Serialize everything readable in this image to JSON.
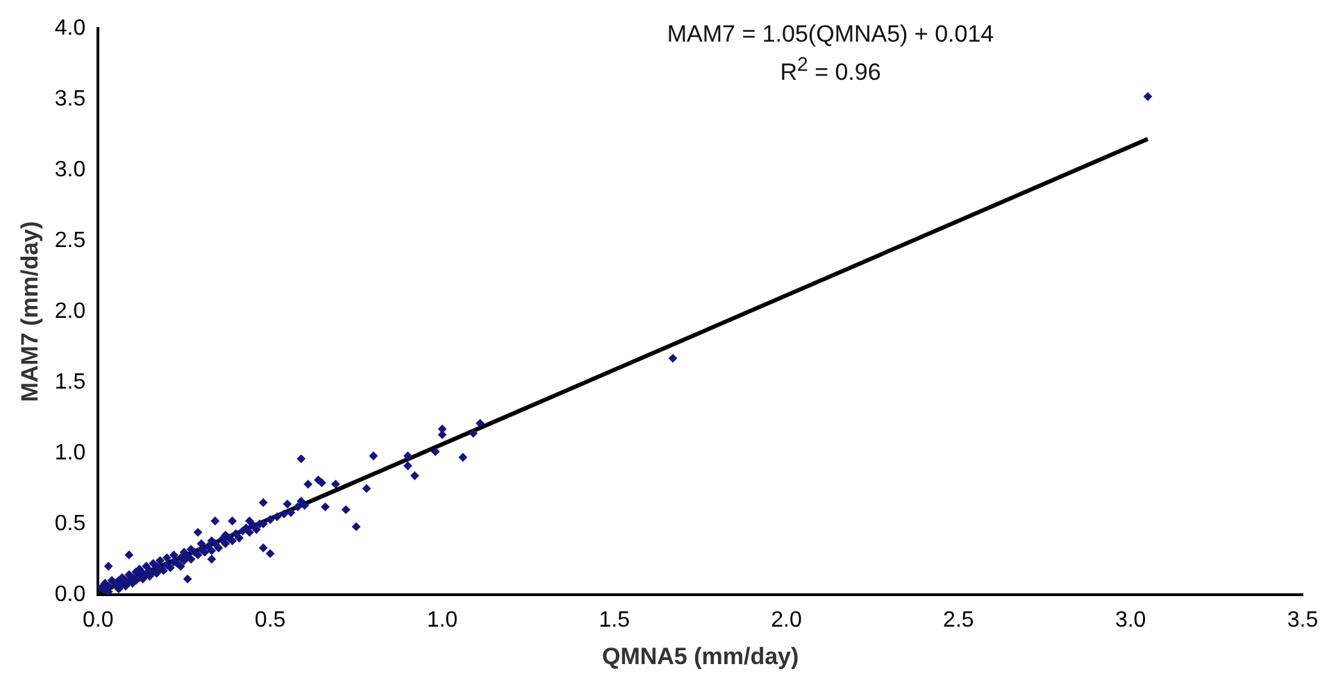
{
  "chart_data": {
    "type": "scatter",
    "xlabel": "QMNA5 (mm/day)",
    "ylabel": "MAM7 (mm/day)",
    "annotations": [
      "MAM7 = 1.05(QMNA5) + 0.014",
      "R$^{2}$ = 0.96"
    ],
    "xlim": [
      0,
      3.5
    ],
    "xticks": [
      {
        "value": 0,
        "label": "0.0"
      },
      {
        "value": 0.5,
        "label": "0.5"
      },
      {
        "value": 1,
        "label": "1.0"
      },
      {
        "value": 1.5,
        "label": "1.5"
      },
      {
        "value": 2,
        "label": "2.0"
      },
      {
        "value": 2.5,
        "label": "2.5"
      },
      {
        "value": 3,
        "label": "3.0"
      },
      {
        "value": 3.5,
        "label": "3.5"
      }
    ],
    "ylim": [
      0,
      4
    ],
    "yticks": [
      {
        "value": 0,
        "label": "0.0"
      },
      {
        "value": 0.5,
        "label": "0.5"
      },
      {
        "value": 1,
        "label": "1.0"
      },
      {
        "value": 1.5,
        "label": "1.5"
      },
      {
        "value": 2,
        "label": "2.0"
      },
      {
        "value": 2.5,
        "label": "2.5"
      },
      {
        "value": 3,
        "label": "3.0"
      },
      {
        "value": 3.5,
        "label": "3.5"
      },
      {
        "value": 4,
        "label": "4.0"
      }
    ],
    "grid": false,
    "legend": false,
    "marker": "diamond",
    "series": [
      {
        "color": "#14147f",
        "x": [
          0.01,
          0.02,
          0.02,
          0.03,
          0.03,
          0.04,
          0.05,
          0.06,
          0.06,
          0.07,
          0.07,
          0.08,
          0.08,
          0.09,
          0.09,
          0.1,
          0.1,
          0.11,
          0.11,
          0.12,
          0.12,
          0.13,
          0.13,
          0.14,
          0.14,
          0.15,
          0.15,
          0.16,
          0.16,
          0.17,
          0.17,
          0.18,
          0.18,
          0.19,
          0.2,
          0.2,
          0.21,
          0.22,
          0.22,
          0.23,
          0.24,
          0.25,
          0.25,
          0.26,
          0.27,
          0.27,
          0.28,
          0.29,
          0.3,
          0.3,
          0.31,
          0.32,
          0.33,
          0.33,
          0.34,
          0.35,
          0.36,
          0.37,
          0.37,
          0.38,
          0.39,
          0.4,
          0.41,
          0.42,
          0.43,
          0.44,
          0.45,
          0.46,
          0.47,
          0.48,
          0.5,
          0.52,
          0.54,
          0.56,
          0.58,
          0.6,
          0.59,
          0.8,
          1.0,
          1.0,
          1.11,
          1.06,
          0.92,
          0.9,
          0.75,
          0.78,
          0.72,
          0.66,
          0.61,
          0.64,
          0.65,
          0.69,
          0.48,
          0.5,
          0.48,
          0.39,
          0.34,
          0.33,
          0.26,
          0.03,
          0.09,
          0.29,
          0.24,
          0.59,
          0.55,
          0.44,
          0.98,
          1.09,
          0.9,
          1.67,
          3.05
        ],
        "values": [
          0.05,
          0.03,
          0.08,
          0.02,
          0.06,
          0.1,
          0.08,
          0.04,
          0.1,
          0.07,
          0.12,
          0.06,
          0.1,
          0.09,
          0.14,
          0.08,
          0.12,
          0.1,
          0.16,
          0.12,
          0.18,
          0.11,
          0.15,
          0.14,
          0.2,
          0.13,
          0.17,
          0.16,
          0.22,
          0.15,
          0.2,
          0.18,
          0.24,
          0.17,
          0.21,
          0.26,
          0.19,
          0.23,
          0.28,
          0.22,
          0.26,
          0.24,
          0.3,
          0.27,
          0.25,
          0.32,
          0.3,
          0.28,
          0.32,
          0.36,
          0.3,
          0.34,
          0.31,
          0.38,
          0.36,
          0.33,
          0.39,
          0.36,
          0.42,
          0.4,
          0.38,
          0.43,
          0.4,
          0.45,
          0.47,
          0.44,
          0.49,
          0.46,
          0.5,
          0.5,
          0.53,
          0.55,
          0.57,
          0.58,
          0.62,
          0.63,
          0.96,
          0.98,
          1.17,
          1.13,
          1.21,
          0.97,
          0.84,
          0.98,
          0.48,
          0.75,
          0.6,
          0.62,
          0.78,
          0.81,
          0.79,
          0.78,
          0.65,
          0.29,
          0.33,
          0.52,
          0.52,
          0.25,
          0.11,
          0.2,
          0.28,
          0.44,
          0.2,
          0.66,
          0.64,
          0.52,
          1.01,
          1.14,
          0.91,
          1.67,
          3.52
        ]
      },
      {
        "type": "line",
        "color": "#000000",
        "marker": "none",
        "line_style": "solid",
        "x": [
          0,
          3.05
        ],
        "values": [
          0.01,
          3.22
        ]
      }
    ]
  }
}
